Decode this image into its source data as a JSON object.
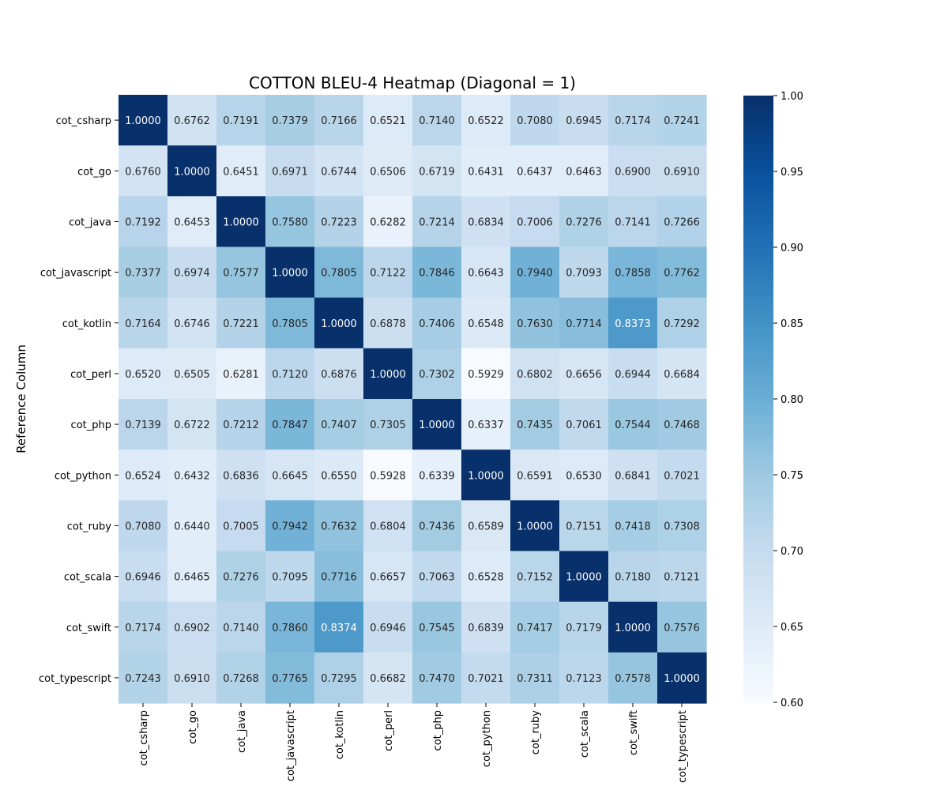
{
  "chart_data": {
    "type": "heatmap",
    "title": "COTTON BLEU-4 Heatmap (Diagonal = 1)",
    "xlabel": "",
    "ylabel": "Reference Column",
    "x_categories": [
      "cot_csharp",
      "cot_go",
      "cot_java",
      "cot_javascript",
      "cot_kotlin",
      "cot_perl",
      "cot_php",
      "cot_python",
      "cot_ruby",
      "cot_scala",
      "cot_swift",
      "cot_typescript"
    ],
    "y_categories": [
      "cot_csharp",
      "cot_go",
      "cot_java",
      "cot_javascript",
      "cot_kotlin",
      "cot_perl",
      "cot_php",
      "cot_python",
      "cot_ruby",
      "cot_scala",
      "cot_swift",
      "cot_typescript"
    ],
    "values": [
      [
        1.0,
        0.6762,
        0.7191,
        0.7379,
        0.7166,
        0.6521,
        0.714,
        0.6522,
        0.708,
        0.6945,
        0.7174,
        0.7241
      ],
      [
        0.676,
        1.0,
        0.6451,
        0.6971,
        0.6744,
        0.6506,
        0.6719,
        0.6431,
        0.6437,
        0.6463,
        0.69,
        0.691
      ],
      [
        0.7192,
        0.6453,
        1.0,
        0.758,
        0.7223,
        0.6282,
        0.7214,
        0.6834,
        0.7006,
        0.7276,
        0.7141,
        0.7266
      ],
      [
        0.7377,
        0.6974,
        0.7577,
        1.0,
        0.7805,
        0.7122,
        0.7846,
        0.6643,
        0.794,
        0.7093,
        0.7858,
        0.7762
      ],
      [
        0.7164,
        0.6746,
        0.7221,
        0.7805,
        1.0,
        0.6878,
        0.7406,
        0.6548,
        0.763,
        0.7714,
        0.8373,
        0.7292
      ],
      [
        0.652,
        0.6505,
        0.6281,
        0.712,
        0.6876,
        1.0,
        0.7302,
        0.5929,
        0.6802,
        0.6656,
        0.6944,
        0.6684
      ],
      [
        0.7139,
        0.6722,
        0.7212,
        0.7847,
        0.7407,
        0.7305,
        1.0,
        0.6337,
        0.7435,
        0.7061,
        0.7544,
        0.7468
      ],
      [
        0.6524,
        0.6432,
        0.6836,
        0.6645,
        0.655,
        0.5928,
        0.6339,
        1.0,
        0.6591,
        0.653,
        0.6841,
        0.7021
      ],
      [
        0.708,
        0.644,
        0.7005,
        0.7942,
        0.7632,
        0.6804,
        0.7436,
        0.6589,
        1.0,
        0.7151,
        0.7418,
        0.7308
      ],
      [
        0.6946,
        0.6465,
        0.7276,
        0.7095,
        0.7716,
        0.6657,
        0.7063,
        0.6528,
        0.7152,
        1.0,
        0.718,
        0.7121
      ],
      [
        0.7174,
        0.6902,
        0.714,
        0.786,
        0.8374,
        0.6946,
        0.7545,
        0.6839,
        0.7417,
        0.7179,
        1.0,
        0.7576
      ],
      [
        0.7243,
        0.691,
        0.7268,
        0.7765,
        0.7295,
        0.6682,
        0.747,
        0.7021,
        0.7311,
        0.7123,
        0.7578,
        1.0
      ]
    ],
    "vmin": 0.6,
    "vmax": 1.0,
    "colormap": "Blues",
    "annotation_format": "4 decimals",
    "colorbar": {
      "ticks": [
        0.6,
        0.65,
        0.7,
        0.75,
        0.8,
        0.85,
        0.9,
        0.95,
        1.0
      ],
      "tick_labels": [
        "0.60",
        "0.65",
        "0.70",
        "0.75",
        "0.80",
        "0.85",
        "0.90",
        "0.95",
        "1.00"
      ]
    },
    "grid": false,
    "legend": "colorbar-right"
  }
}
